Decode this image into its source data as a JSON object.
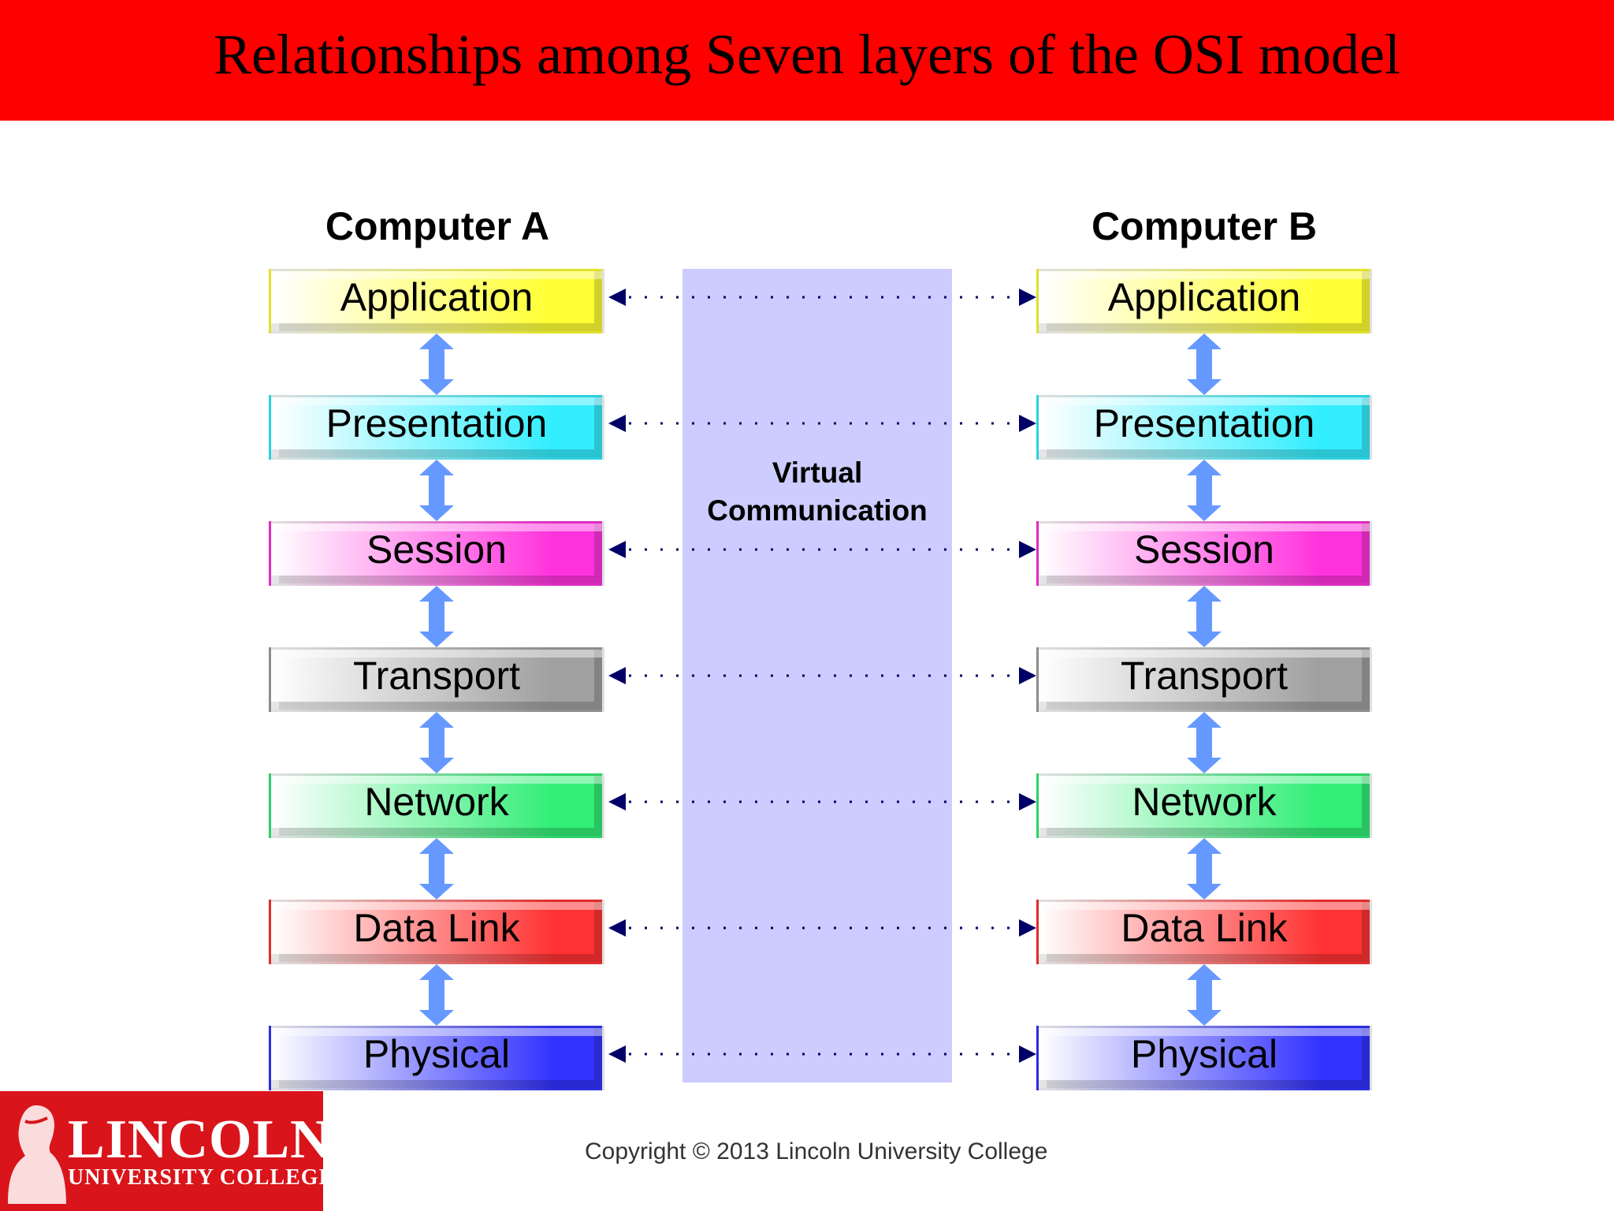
{
  "title": "Relationships among Seven layers of the OSI model",
  "computers": [
    {
      "name": "Computer A",
      "layers": [
        "Application",
        "Presentation",
        "Session",
        "Transport",
        "Network",
        "Data Link",
        "Physical"
      ]
    },
    {
      "name": "Computer B",
      "layers": [
        "Application",
        "Presentation",
        "Session",
        "Transport",
        "Network",
        "Data Link",
        "Physical"
      ]
    }
  ],
  "virtual_label": [
    "Virtual",
    "Communication"
  ],
  "layer_colors": [
    "#ffff33",
    "#33eeff",
    "#ff33dd",
    "#a0a0a0",
    "#33ee77",
    "#ff3333",
    "#3333ff"
  ],
  "connector_color": "#6699ff",
  "dotted_color": "#000066",
  "band_color": "#ccccff",
  "logo": {
    "main": "LINCOLN",
    "sub": "UNIVERSITY COLLEGE"
  },
  "copyright": "Copyright © 2013 Lincoln University College"
}
